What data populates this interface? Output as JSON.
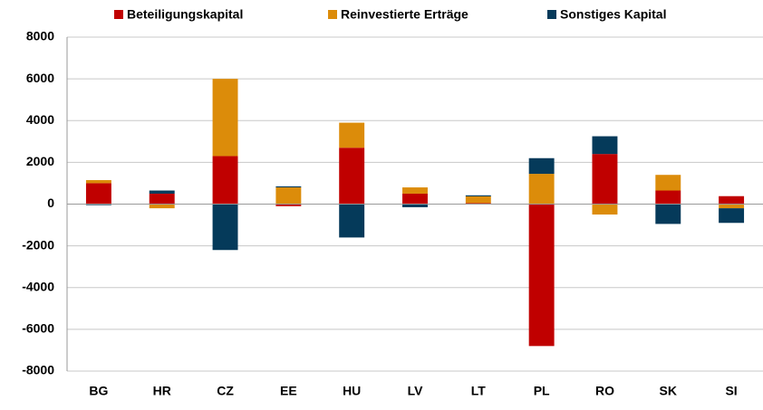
{
  "chart_data": {
    "type": "stacked_bar",
    "categories": [
      "BG",
      "HR",
      "CZ",
      "EE",
      "HU",
      "LV",
      "LT",
      "PL",
      "RO",
      "SK",
      "SI"
    ],
    "series": [
      {
        "name": "Beteiligungskapital",
        "color": "#c00000",
        "values": [
          1000,
          500,
          2300,
          -100,
          2700,
          500,
          50,
          -6800,
          2400,
          650,
          380
        ]
      },
      {
        "name": "Reinvestierte Erträge",
        "color": "#dc8c0a",
        "values": [
          150,
          -200,
          3700,
          800,
          1200,
          300,
          320,
          1450,
          -500,
          750,
          -200
        ]
      },
      {
        "name": "Sonstiges Kapital",
        "color": "#053a5a",
        "values": [
          -50,
          150,
          -2200,
          50,
          -1600,
          -150,
          50,
          750,
          850,
          -950,
          -700
        ]
      }
    ],
    "ylim": [
      -8000,
      8000
    ],
    "yticks": [
      -8000,
      -6000,
      -4000,
      -2000,
      0,
      2000,
      4000,
      6000,
      8000
    ],
    "grid": true,
    "legend": "top"
  }
}
